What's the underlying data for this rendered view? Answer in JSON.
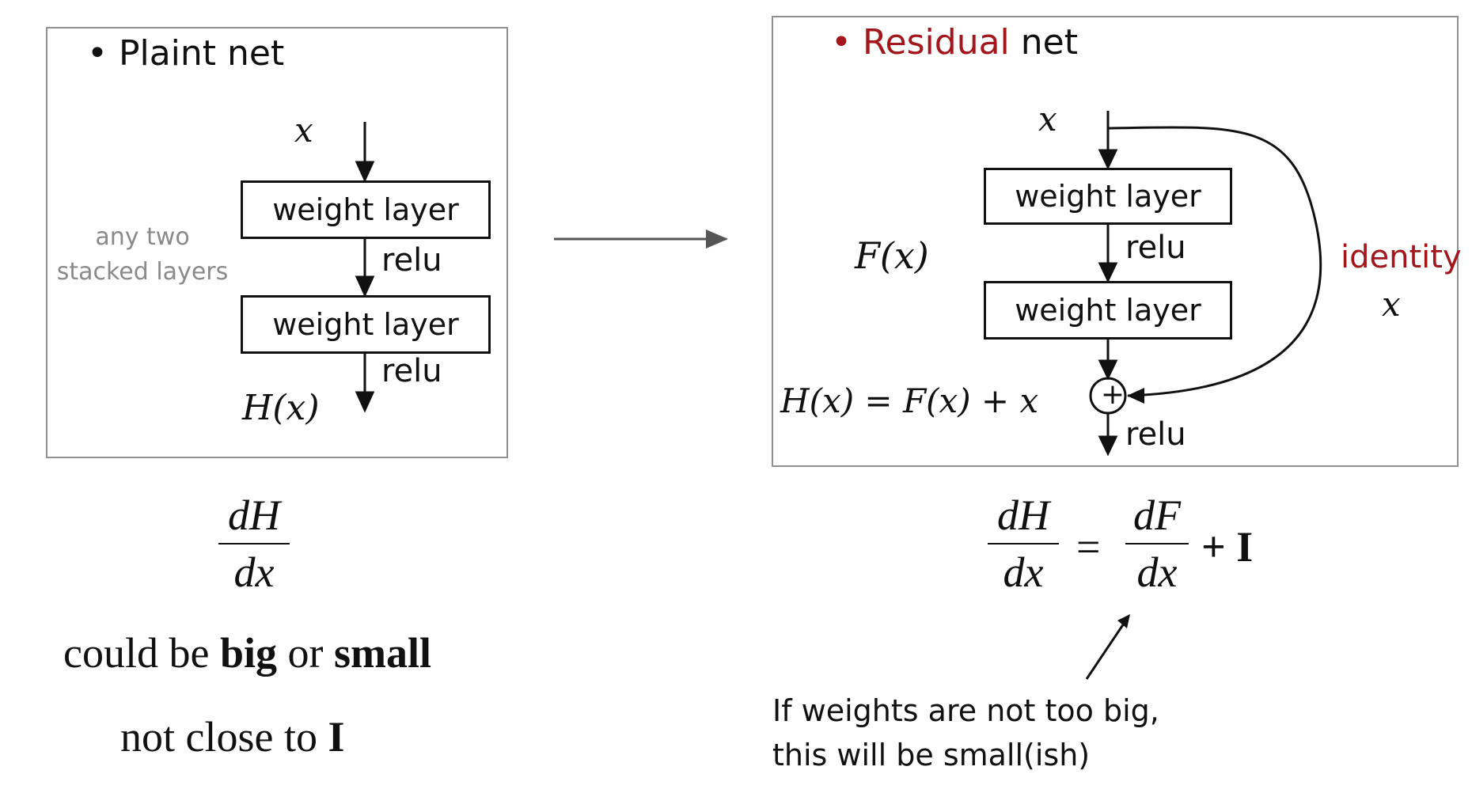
{
  "plain": {
    "title": "Plaint net",
    "input_var": "x",
    "layer1": "weight layer",
    "relu1": "relu",
    "layer2": "weight layer",
    "relu2": "relu",
    "output": "H(x)",
    "side_note_line1": "any two",
    "side_note_line2": "stacked layers"
  },
  "residual": {
    "title_word1": "Residual",
    "title_word2": "net",
    "input_var": "x",
    "fx": "F(x)",
    "layer1": "weight layer",
    "relu1": "relu",
    "layer2": "weight layer",
    "identity_label": "identity",
    "identity_var": "x",
    "equation": "H(x) = F(x) + x",
    "plus_symbol": "+",
    "relu_out": "relu"
  },
  "plain_math": {
    "num": "dH",
    "den": "dx",
    "line1_a": "could be",
    "line1_b": "big",
    "line1_c": "or",
    "line1_d": "small",
    "line2_a": "not close to",
    "line2_b": "I"
  },
  "residual_math": {
    "lhs_num": "dH",
    "lhs_den": "dx",
    "equals": "=",
    "rhs_num": "dF",
    "rhs_den": "dx",
    "plus_identity": "+ I"
  },
  "annotation": {
    "line1": "If weights are not too big,",
    "line2": "this will be small(ish)"
  },
  "colors": {
    "accent": "#a3161c",
    "panel_border": "#8f8f8f",
    "gray_text": "#8a8a8a"
  }
}
